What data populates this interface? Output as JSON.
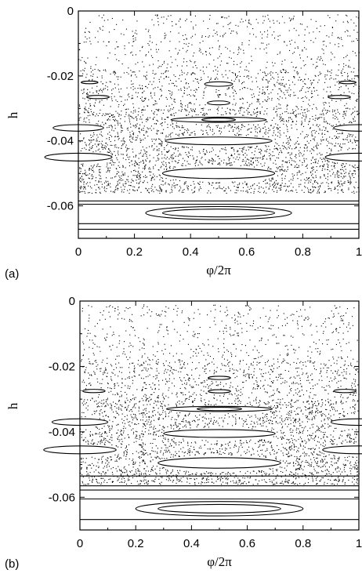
{
  "chart_data": [
    {
      "panel_label": "(a)",
      "type": "scatter",
      "xlabel": "φ/2π",
      "ylabel": "h",
      "xlim": [
        0,
        1
      ],
      "ylim": [
        -0.07,
        0
      ],
      "xticks": [
        0,
        0.2,
        0.4,
        0.6,
        0.8,
        1
      ],
      "xtick_labels": [
        "0",
        "0.2",
        "0.4",
        "0.6",
        "0.8",
        "1"
      ],
      "yticks": [
        0,
        -0.02,
        -0.04,
        -0.06
      ],
      "ytick_labels": [
        "0",
        "-0.02",
        "-0.04",
        "-0.06"
      ],
      "scatter_bands": [
        {
          "ymin": -0.018,
          "ymax": -0.001,
          "density": 0.25
        },
        {
          "ymin": -0.03,
          "ymax": -0.018,
          "density": 0.55
        },
        {
          "ymin": -0.045,
          "ymax": -0.03,
          "density": 0.85
        },
        {
          "ymin": -0.056,
          "ymax": -0.045,
          "density": 1.0
        }
      ],
      "islands": [
        {
          "cx": 0.5,
          "cy": -0.0225,
          "rx": 0.05,
          "ry": 0.0007
        },
        {
          "cx": 0.5,
          "cy": -0.0283,
          "rx": 0.04,
          "ry": 0.0006
        },
        {
          "cx": 0.5,
          "cy": -0.0335,
          "rx": 0.17,
          "ry": 0.0008
        },
        {
          "cx": 0.5,
          "cy": -0.0335,
          "rx": 0.06,
          "ry": 0.0005
        },
        {
          "cx": 0.5,
          "cy": -0.04,
          "rx": 0.19,
          "ry": 0.0012
        },
        {
          "cx": 0.5,
          "cy": -0.05,
          "rx": 0.2,
          "ry": 0.0016
        },
        {
          "cx": 0.5,
          "cy": -0.0622,
          "rx": 0.26,
          "ry": 0.002
        },
        {
          "cx": 0.5,
          "cy": -0.0622,
          "rx": 0.2,
          "ry": 0.0012
        },
        {
          "cx": 0.0,
          "cy": -0.036,
          "rx": 0.09,
          "ry": 0.001
        },
        {
          "cx": 1.0,
          "cy": -0.036,
          "rx": 0.09,
          "ry": 0.001
        },
        {
          "cx": 0.0,
          "cy": -0.045,
          "rx": 0.12,
          "ry": 0.0012
        },
        {
          "cx": 1.0,
          "cy": -0.045,
          "rx": 0.12,
          "ry": 0.0012
        },
        {
          "cx": 0.07,
          "cy": -0.0265,
          "rx": 0.04,
          "ry": 0.0005
        },
        {
          "cx": 0.93,
          "cy": -0.0265,
          "rx": 0.04,
          "ry": 0.0005
        },
        {
          "cx": 0.04,
          "cy": -0.022,
          "rx": 0.03,
          "ry": 0.0004
        },
        {
          "cx": 0.96,
          "cy": -0.022,
          "rx": 0.03,
          "ry": 0.0004
        }
      ],
      "lines": [
        -0.0585,
        -0.0595,
        -0.0655,
        -0.0672
      ],
      "seed": 11
    },
    {
      "panel_label": "(b)",
      "type": "scatter",
      "xlabel": "φ/2π",
      "ylabel": "h",
      "xlim": [
        0,
        1
      ],
      "ylim": [
        -0.07,
        0
      ],
      "xticks": [
        0,
        0.2,
        0.4,
        0.6,
        0.8,
        1
      ],
      "xtick_labels": [
        "0",
        "0.2",
        "0.4",
        "0.6",
        "0.8",
        "1"
      ],
      "yticks": [
        0,
        -0.02,
        -0.04,
        -0.06
      ],
      "ytick_labels": [
        "0",
        "-0.02",
        "-0.04",
        "-0.06"
      ],
      "scatter_bands": [
        {
          "ymin": -0.018,
          "ymax": -0.001,
          "density": 0.25
        },
        {
          "ymin": -0.03,
          "ymax": -0.018,
          "density": 0.55
        },
        {
          "ymin": -0.045,
          "ymax": -0.03,
          "density": 0.85
        },
        {
          "ymin": -0.056,
          "ymax": -0.045,
          "density": 1.0
        }
      ],
      "islands": [
        {
          "cx": 0.5,
          "cy": -0.0235,
          "rx": 0.04,
          "ry": 0.0005
        },
        {
          "cx": 0.5,
          "cy": -0.0276,
          "rx": 0.04,
          "ry": 0.0005
        },
        {
          "cx": 0.5,
          "cy": -0.033,
          "rx": 0.19,
          "ry": 0.0008
        },
        {
          "cx": 0.5,
          "cy": -0.033,
          "rx": 0.08,
          "ry": 0.0005
        },
        {
          "cx": 0.5,
          "cy": -0.0405,
          "rx": 0.2,
          "ry": 0.0012
        },
        {
          "cx": 0.5,
          "cy": -0.0495,
          "rx": 0.22,
          "ry": 0.0016
        },
        {
          "cx": 0.5,
          "cy": -0.0635,
          "rx": 0.3,
          "ry": 0.0022
        },
        {
          "cx": 0.5,
          "cy": -0.0635,
          "rx": 0.22,
          "ry": 0.0013
        },
        {
          "cx": 0.0,
          "cy": -0.037,
          "rx": 0.1,
          "ry": 0.001
        },
        {
          "cx": 1.0,
          "cy": -0.037,
          "rx": 0.1,
          "ry": 0.001
        },
        {
          "cx": 0.0,
          "cy": -0.0455,
          "rx": 0.13,
          "ry": 0.0012
        },
        {
          "cx": 1.0,
          "cy": -0.0455,
          "rx": 0.13,
          "ry": 0.0012
        },
        {
          "cx": 0.05,
          "cy": -0.0275,
          "rx": 0.04,
          "ry": 0.0005
        },
        {
          "cx": 0.95,
          "cy": -0.0275,
          "rx": 0.04,
          "ry": 0.0005
        }
      ],
      "lines": [
        -0.0535,
        -0.0565,
        -0.0578,
        -0.0605,
        -0.0668
      ],
      "seed": 29
    }
  ]
}
